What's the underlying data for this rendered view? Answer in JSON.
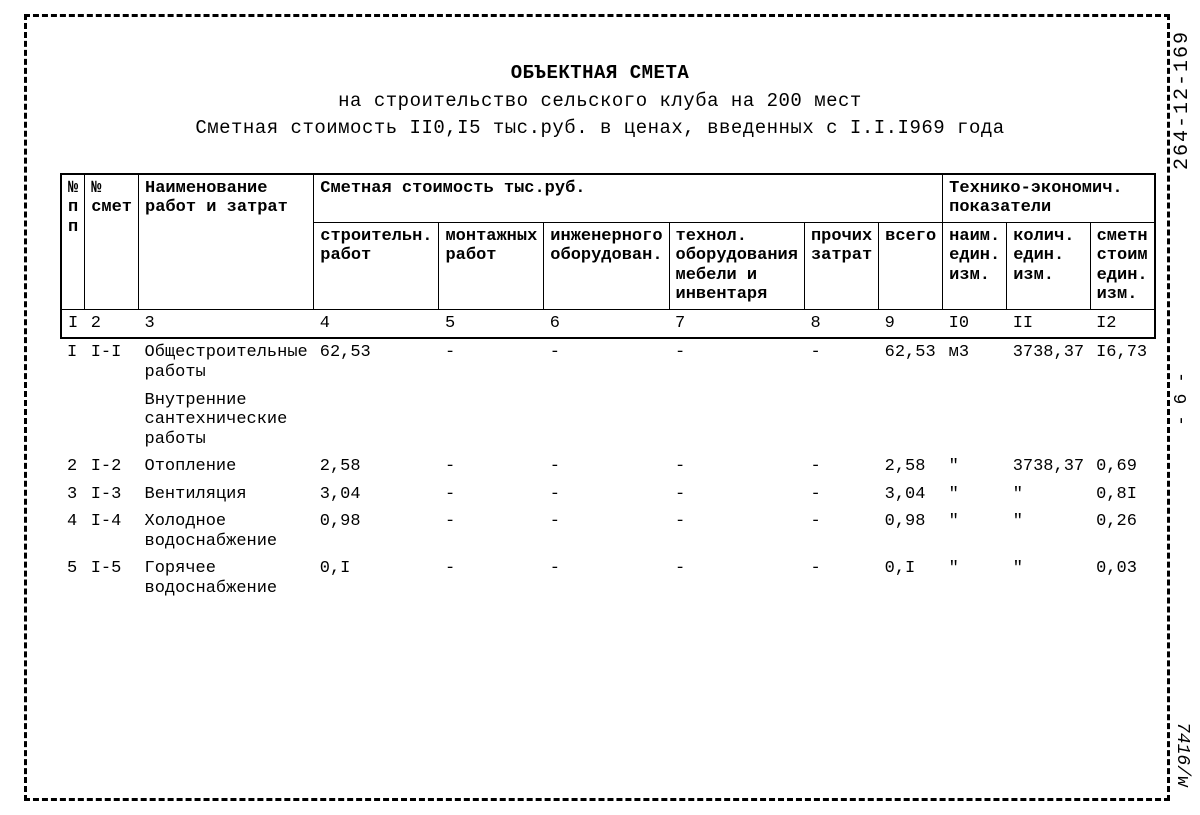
{
  "margins": {
    "top_code": "264-12-169",
    "page_num": "- 6 -",
    "bottom_code": "7416/w"
  },
  "heading": {
    "title": "ОБЪЕКТНАЯ СМЕТА",
    "line2": "на строительство сельского клуба на 200 мест",
    "line3": "Сметная стоимость II0,I5 тыс.руб. в ценах, введенных с I.I.I969 года"
  },
  "headers": {
    "c1": "№ п п",
    "c2": "№ смет",
    "c3": "Наименование работ и затрат",
    "g1": "Сметная стоимость тыс.руб.",
    "g2": "Технико-экономич. показатели",
    "c4": "строительн. работ",
    "c5": "монтажных работ",
    "c6": "инженерного оборудован.",
    "c7": "технол. оборудования мебели и инвентаря",
    "c8": "прочих затрат",
    "c9": "всего",
    "c10": "наим. един. изм.",
    "c11": "колич. един. изм.",
    "c12": "сметн стоим един. изм."
  },
  "colnums": {
    "n1": "I",
    "n2": "2",
    "n3": "3",
    "n4": "4",
    "n5": "5",
    "n6": "6",
    "n7": "7",
    "n8": "8",
    "n9": "9",
    "n10": "I0",
    "n11": "II",
    "n12": "I2"
  },
  "rows": {
    "r1": {
      "n": "I",
      "smet": "I-I",
      "name": "Общестроительные работы",
      "c4": "62,53",
      "c5": "-",
      "c6": "-",
      "c7": "-",
      "c8": "-",
      "c9": "62,53",
      "c10": "м3",
      "c11": "3738,37",
      "c12": "I6,73"
    },
    "sub1": {
      "name": "Внутренние сантехнические работы"
    },
    "r2": {
      "n": "2",
      "smet": "I-2",
      "name": "Отопление",
      "c4": "2,58",
      "c5": "-",
      "c6": "-",
      "c7": "-",
      "c8": "-",
      "c9": "2,58",
      "c10": "\"",
      "c11": "3738,37",
      "c12": "0,69"
    },
    "r3": {
      "n": "3",
      "smet": "I-3",
      "name": "Вентиляция",
      "c4": "3,04",
      "c5": "-",
      "c6": "-",
      "c7": "-",
      "c8": "-",
      "c9": "3,04",
      "c10": "\"",
      "c11": "\"",
      "c12": "0,8I"
    },
    "r4": {
      "n": "4",
      "smet": "I-4",
      "name": "Холодное водоснабжение",
      "c4": "0,98",
      "c5": "-",
      "c6": "-",
      "c7": "-",
      "c8": "-",
      "c9": "0,98",
      "c10": "\"",
      "c11": "\"",
      "c12": "0,26"
    },
    "r5": {
      "n": "5",
      "smet": "I-5",
      "name": "Горячее водоснабжение",
      "c4": "0,I",
      "c5": "-",
      "c6": "-",
      "c7": "-",
      "c8": "-",
      "c9": "0,I",
      "c10": "\"",
      "c11": "\"",
      "c12": "0,03"
    }
  }
}
